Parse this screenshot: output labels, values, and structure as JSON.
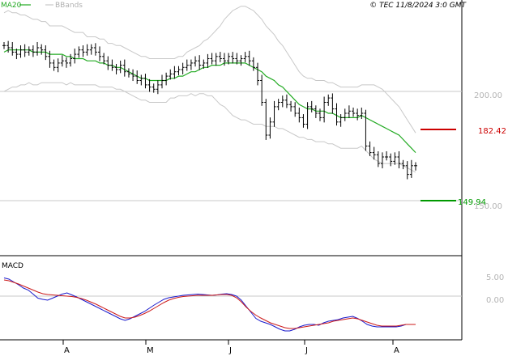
{
  "header": {
    "ma_label": "MA20",
    "bbands_label": "BBands",
    "copyright": "© TEC 11/8/2024 3:0 GMT"
  },
  "colors": {
    "ma": "#22aa22",
    "bbands": "#c8c8c8",
    "bar": "#000000",
    "resistance": "#cc0000",
    "support": "#009900",
    "macd": "#1a1acc",
    "signal": "#cc1a1a",
    "grid": "#c8c8c8"
  },
  "levels": {
    "resistance": "182.42",
    "support": "149.94"
  },
  "macd_label": "MACD",
  "chart_data": [
    {
      "type": "ohlc",
      "x_ticks": [
        "A",
        "M",
        "J",
        "J",
        "A"
      ],
      "y_ticks": [
        "200.00",
        "150.00"
      ],
      "ylim": [
        135,
        240
      ],
      "resistance": 182.42,
      "support": 149.94,
      "closes": [
        221,
        220,
        218,
        217,
        219,
        218,
        219,
        218,
        220,
        219,
        216,
        213,
        211,
        213,
        214,
        213,
        215,
        217,
        219,
        218,
        219,
        220,
        218,
        216,
        214,
        212,
        211,
        210,
        212,
        209,
        208,
        207,
        205,
        206,
        203,
        202,
        201,
        203,
        205,
        207,
        208,
        209,
        210,
        211,
        212,
        213,
        214,
        212,
        213,
        215,
        214,
        216,
        215,
        214,
        216,
        215,
        214,
        215,
        216,
        214,
        211,
        205,
        195,
        180,
        186,
        193,
        195,
        196,
        194,
        193,
        190,
        188,
        185,
        193,
        192,
        190,
        188,
        195,
        197,
        192,
        186,
        188,
        190,
        191,
        190,
        189,
        190,
        175,
        172,
        171,
        167,
        170,
        170,
        168,
        170,
        167,
        166,
        162,
        166,
        166
      ],
      "ma20": [
        218,
        219,
        219,
        219,
        219,
        219,
        219,
        218,
        218,
        218,
        218,
        217,
        217,
        217,
        217,
        216,
        216,
        215,
        215,
        215,
        214,
        214,
        214,
        213,
        213,
        212,
        212,
        211,
        211,
        210,
        209,
        208,
        207,
        206,
        206,
        205,
        205,
        205,
        205,
        205,
        206,
        206,
        207,
        207,
        208,
        209,
        209,
        210,
        211,
        211,
        212,
        212,
        212,
        213,
        213,
        213,
        213,
        213,
        213,
        212,
        211,
        210,
        209,
        207,
        206,
        205,
        203,
        202,
        200,
        198,
        196,
        194,
        193,
        192,
        192,
        191,
        191,
        191,
        190,
        190,
        189,
        188,
        188,
        188,
        188,
        188,
        189,
        188,
        187,
        186,
        185,
        184,
        183,
        182,
        181,
        180,
        178,
        176,
        174,
        172
      ],
      "bb_width": [
        18,
        18,
        17,
        17,
        16,
        16,
        15,
        15,
        15,
        14,
        14,
        13,
        13,
        13,
        13,
        13,
        12,
        12,
        12,
        12,
        11,
        11,
        11,
        11,
        11,
        10,
        10,
        10,
        10,
        10,
        10,
        10,
        10,
        10,
        10,
        10,
        10,
        10,
        10,
        10,
        9,
        9,
        9,
        9,
        10,
        10,
        11,
        11,
        12,
        13,
        14,
        16,
        18,
        20,
        22,
        24,
        25,
        26,
        26,
        26,
        26,
        25,
        24,
        23,
        22,
        21,
        20,
        19,
        18,
        17,
        16,
        15,
        14,
        14,
        14,
        14,
        14,
        14,
        14,
        14,
        14,
        14,
        14,
        14,
        14,
        14,
        14,
        15,
        16,
        17,
        17,
        17,
        16,
        15,
        14,
        13,
        12,
        11,
        10,
        9
      ]
    },
    {
      "type": "line",
      "title": "MACD",
      "y_ticks": [
        "5.00",
        "0.00"
      ],
      "ylim": [
        -10,
        10
      ],
      "macd": [
        4.5,
        4.2,
        3.5,
        2.8,
        2.0,
        1.5,
        0.5,
        -0.5,
        -0.8,
        -1.0,
        -0.5,
        0.0,
        0.5,
        0.8,
        0.3,
        -0.2,
        -0.8,
        -1.4,
        -2.0,
        -2.6,
        -3.2,
        -3.8,
        -4.4,
        -5.0,
        -5.6,
        -6.0,
        -5.6,
        -5.0,
        -4.4,
        -3.8,
        -3.0,
        -2.2,
        -1.5,
        -0.8,
        -0.4,
        -0.2,
        0.0,
        0.2,
        0.3,
        0.4,
        0.5,
        0.4,
        0.3,
        0.2,
        0.3,
        0.5,
        0.6,
        0.4,
        0.0,
        -1.0,
        -2.5,
        -4.0,
        -5.5,
        -6.2,
        -6.6,
        -7.0,
        -7.6,
        -8.2,
        -8.6,
        -8.6,
        -8.2,
        -7.6,
        -7.2,
        -7.0,
        -7.0,
        -7.2,
        -6.6,
        -6.2,
        -6.0,
        -5.8,
        -5.4,
        -5.2,
        -5.0,
        -5.5,
        -6.2,
        -7.0,
        -7.4,
        -7.6,
        -7.6,
        -7.6,
        -7.6,
        -7.6,
        -7.4,
        -7.0,
        -7.0,
        -7.0
      ],
      "signal": [
        4.0,
        3.8,
        3.4,
        3.0,
        2.5,
        2.0,
        1.5,
        1.0,
        0.6,
        0.4,
        0.3,
        0.2,
        0.1,
        0.0,
        -0.1,
        -0.3,
        -0.6,
        -1.0,
        -1.5,
        -2.0,
        -2.6,
        -3.2,
        -3.8,
        -4.4,
        -5.0,
        -5.4,
        -5.4,
        -5.2,
        -4.8,
        -4.3,
        -3.7,
        -3.0,
        -2.3,
        -1.6,
        -1.0,
        -0.6,
        -0.3,
        -0.1,
        0.0,
        0.1,
        0.2,
        0.2,
        0.2,
        0.2,
        0.3,
        0.4,
        0.4,
        0.2,
        -0.4,
        -1.4,
        -2.7,
        -3.8,
        -4.7,
        -5.4,
        -6.0,
        -6.6,
        -7.0,
        -7.4,
        -7.8,
        -8.0,
        -8.0,
        -7.8,
        -7.6,
        -7.4,
        -7.2,
        -7.0,
        -6.8,
        -6.6,
        -6.2,
        -6.0,
        -5.8,
        -5.6,
        -5.4,
        -5.6,
        -6.0,
        -6.4,
        -6.8,
        -7.2,
        -7.4,
        -7.4,
        -7.4,
        -7.4,
        -7.2,
        -7.0,
        -7.0,
        -7.0
      ]
    }
  ]
}
